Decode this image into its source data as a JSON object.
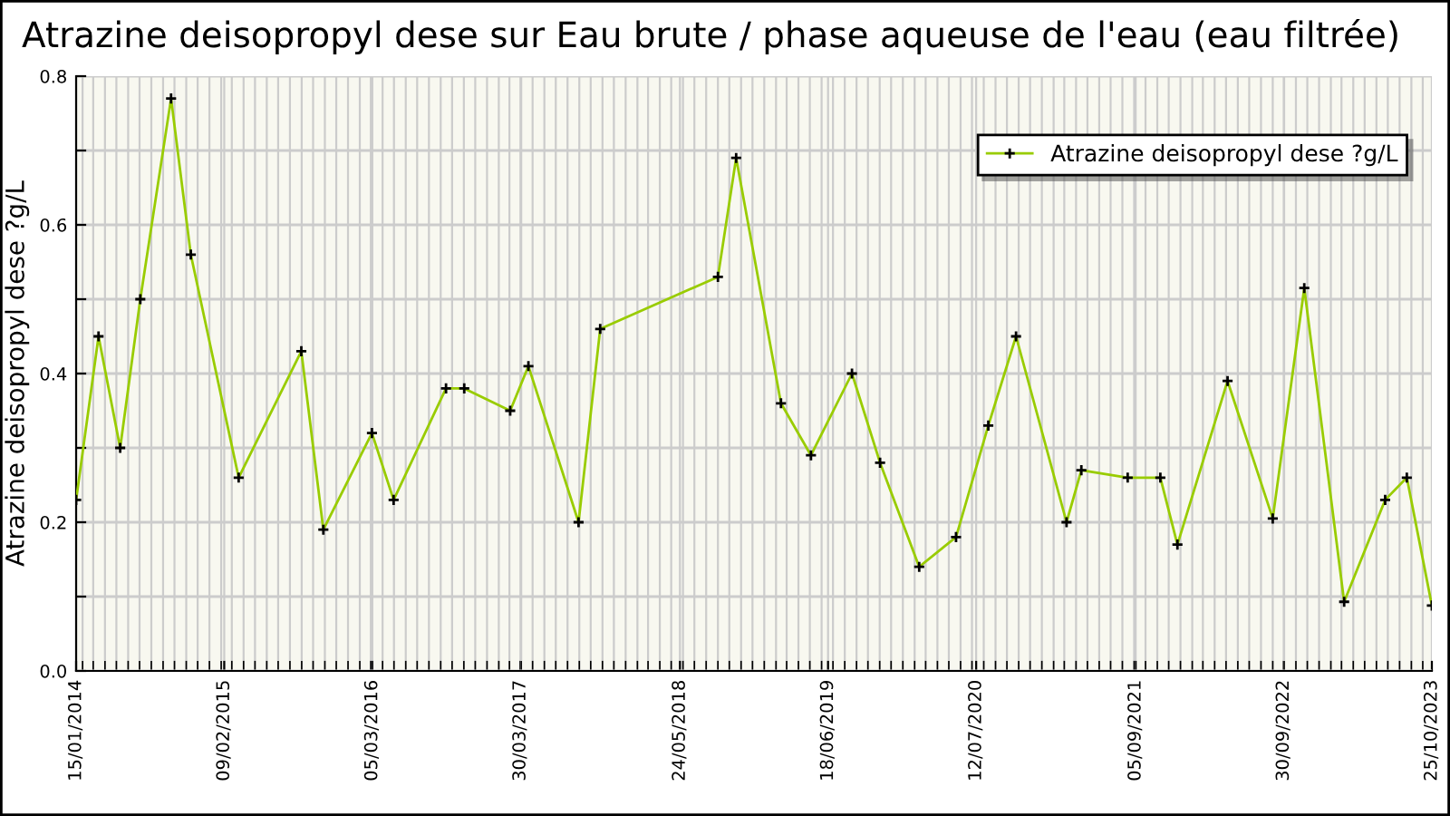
{
  "chart_data": {
    "type": "line",
    "title": "Atrazine deisopropyl dese sur Eau brute / phase aqueuse de l'eau (eau filtrée)",
    "ylabel": "Atrazine deisopropyl dese ?g/L",
    "x": [
      "2014-01-15",
      "2014-03-15",
      "2014-05-11",
      "2014-07-03",
      "2014-09-22",
      "2014-11-13",
      "2015-03-19",
      "2015-08-31",
      "2015-10-28",
      "2016-03-04",
      "2016-04-30",
      "2016-09-15",
      "2016-11-02",
      "2017-03-03",
      "2017-04-20",
      "2017-08-30",
      "2017-10-26",
      "2018-09-01",
      "2018-10-19",
      "2019-02-14",
      "2019-05-04",
      "2019-08-20",
      "2019-11-02",
      "2020-02-13",
      "2020-05-20",
      "2020-08-13",
      "2020-10-25",
      "2021-03-07",
      "2021-04-15",
      "2021-08-15",
      "2021-11-09",
      "2021-12-24",
      "2022-05-05",
      "2022-09-01",
      "2022-11-23",
      "2023-03-08",
      "2023-06-24",
      "2023-08-20",
      "2023-10-25"
    ],
    "series": [
      {
        "name": "Atrazine deisopropyl dese ?g/L",
        "color": "#99cc00",
        "values": [
          0.23,
          0.45,
          0.3,
          0.5,
          0.77,
          0.56,
          0.26,
          0.43,
          0.19,
          0.32,
          0.23,
          0.38,
          0.38,
          0.35,
          0.41,
          0.2,
          0.46,
          0.53,
          0.69,
          0.36,
          0.29,
          0.4,
          0.28,
          0.14,
          0.18,
          0.33,
          0.45,
          0.2,
          0.27,
          0.26,
          0.26,
          0.17,
          0.39,
          0.205,
          0.515,
          0.093,
          0.23,
          0.26,
          0.088
        ]
      }
    ],
    "xlim": [
      "2014-01-15",
      "2023-10-25"
    ],
    "xticks": [
      {
        "value": "2014-01-15",
        "label": "15/01/2014"
      },
      {
        "value": "2015-02-09",
        "label": "09/02/2015"
      },
      {
        "value": "2016-03-05",
        "label": "05/03/2016"
      },
      {
        "value": "2017-03-30",
        "label": "30/03/2017"
      },
      {
        "value": "2018-05-24",
        "label": "24/05/2018"
      },
      {
        "value": "2019-06-18",
        "label": "18/06/2019"
      },
      {
        "value": "2020-07-12",
        "label": "12/07/2020"
      },
      {
        "value": "2021-09-05",
        "label": "05/09/2021"
      },
      {
        "value": "2022-09-30",
        "label": "30/09/2022"
      },
      {
        "value": "2023-10-25",
        "label": "25/10/2023"
      }
    ],
    "ylim": [
      0,
      0.8
    ],
    "yticks": [
      {
        "value": 0,
        "label": "0.0"
      },
      {
        "value": 0.1,
        "label": null
      },
      {
        "value": 0.2,
        "label": "0.2"
      },
      {
        "value": 0.3,
        "label": null
      },
      {
        "value": 0.4,
        "label": "0.4"
      },
      {
        "value": 0.5,
        "label": null
      },
      {
        "value": 0.6,
        "label": "0.6"
      },
      {
        "value": 0.7,
        "label": null
      },
      {
        "value": 0.8,
        "label": "0.8"
      }
    ],
    "grid": true,
    "legend": "top right",
    "marker": "cross",
    "line_style": "solid"
  }
}
